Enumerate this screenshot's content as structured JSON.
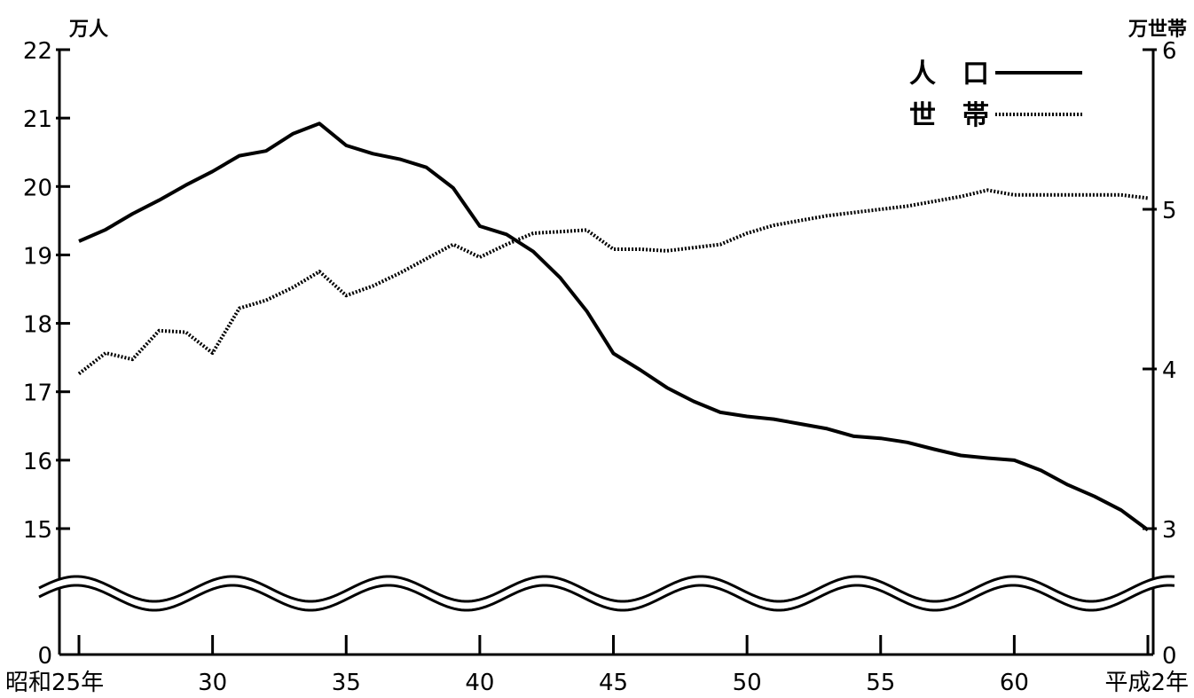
{
  "chart_data": {
    "type": "line",
    "left_unit": "万人",
    "right_unit": "万世帯",
    "x_tick_labels": [
      "昭和25年",
      "30",
      "35",
      "40",
      "45",
      "50",
      "55",
      "60",
      "平成2年"
    ],
    "x_ticks": [
      25,
      30,
      35,
      40,
      45,
      50,
      55,
      60,
      65
    ],
    "y_left_tick_labels": [
      "22",
      "21",
      "20",
      "19",
      "18",
      "17",
      "16",
      "15",
      "0"
    ],
    "y_left_ticks": [
      22,
      21,
      20,
      19,
      18,
      17,
      16,
      15
    ],
    "y_left_range": [
      15,
      22
    ],
    "y_right_tick_labels": [
      "6",
      "5",
      "4",
      "3",
      "0"
    ],
    "y_right_ticks": [
      6,
      5,
      4,
      3
    ],
    "y_right_range": [
      3,
      6
    ],
    "axis_break": true,
    "grid": false,
    "legend_position": "top-right",
    "series": [
      {
        "name": "人　口",
        "axis": "left",
        "style": "solid",
        "x": [
          25,
          26,
          27,
          28,
          29,
          30,
          31,
          32,
          33,
          34,
          35,
          36,
          37,
          38,
          39,
          40,
          41,
          42,
          43,
          44,
          45,
          46,
          47,
          48,
          49,
          50,
          51,
          52,
          53,
          54,
          55,
          56,
          57,
          58,
          59,
          60,
          61,
          62,
          63,
          64,
          65
        ],
        "values": [
          19.2,
          19.37,
          19.6,
          19.8,
          20.02,
          20.22,
          20.45,
          20.52,
          20.77,
          20.92,
          20.6,
          20.48,
          20.4,
          20.28,
          19.98,
          19.42,
          19.3,
          19.05,
          18.67,
          18.18,
          17.56,
          17.32,
          17.06,
          16.86,
          16.7,
          16.64,
          16.6,
          16.53,
          16.46,
          16.35,
          16.32,
          16.26,
          16.16,
          16.07,
          16.03,
          16.0,
          15.85,
          15.64,
          15.47,
          15.27,
          14.98
        ]
      },
      {
        "name": "世　帯",
        "axis": "right",
        "style": "dotted",
        "x": [
          25,
          26,
          27,
          28,
          29,
          30,
          31,
          32,
          33,
          34,
          35,
          36,
          37,
          38,
          39,
          40,
          41,
          42,
          43,
          44,
          45,
          46,
          47,
          48,
          49,
          50,
          51,
          52,
          53,
          54,
          55,
          56,
          57,
          58,
          59,
          60,
          61,
          62,
          63,
          64,
          65
        ],
        "values": [
          3.97,
          4.1,
          4.06,
          4.24,
          4.23,
          4.1,
          4.38,
          4.43,
          4.51,
          4.61,
          4.46,
          4.52,
          4.6,
          4.69,
          4.78,
          4.7,
          4.78,
          4.85,
          4.86,
          4.87,
          4.75,
          4.75,
          4.74,
          4.76,
          4.78,
          4.85,
          4.9,
          4.93,
          4.96,
          4.98,
          5.0,
          5.02,
          5.05,
          5.08,
          5.12,
          5.09,
          5.09,
          5.09,
          5.09,
          5.09,
          5.07
        ]
      }
    ]
  }
}
